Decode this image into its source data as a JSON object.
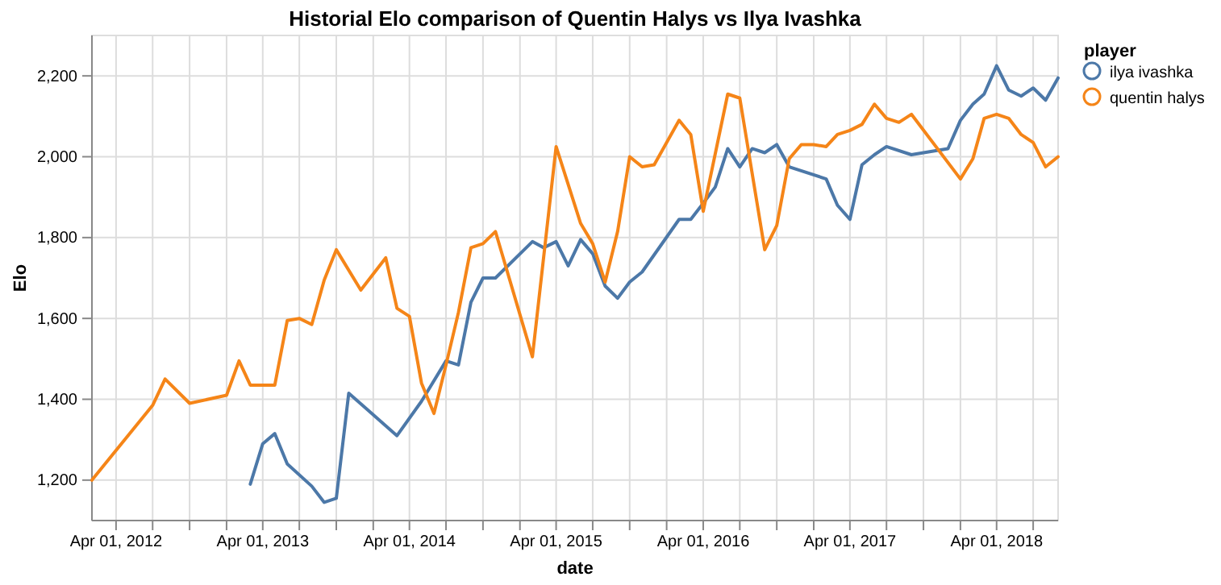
{
  "chart_data": {
    "type": "line",
    "title": "Historial Elo comparison of Quentin Halys vs Ilya Ivashka",
    "xlabel": "date",
    "ylabel": "Elo",
    "legend_title": "player",
    "legend": "top right",
    "grid": true,
    "marker": "none",
    "line_style": "solid",
    "xlim": [
      "2012-02-01",
      "2018-09-01"
    ],
    "ylim": [
      1100,
      2300
    ],
    "xticks": [
      {
        "value": "2012-04-01",
        "label": "Apr 01, 2012"
      },
      {
        "value": "2012-07-01",
        "label": null
      },
      {
        "value": "2012-10-01",
        "label": null
      },
      {
        "value": "2013-01-01",
        "label": null
      },
      {
        "value": "2013-04-01",
        "label": "Apr 01, 2013"
      },
      {
        "value": "2013-07-01",
        "label": null
      },
      {
        "value": "2013-10-01",
        "label": null
      },
      {
        "value": "2014-01-01",
        "label": null
      },
      {
        "value": "2014-04-01",
        "label": "Apr 01, 2014"
      },
      {
        "value": "2014-07-01",
        "label": null
      },
      {
        "value": "2014-10-01",
        "label": null
      },
      {
        "value": "2015-01-01",
        "label": null
      },
      {
        "value": "2015-04-01",
        "label": "Apr 01, 2015"
      },
      {
        "value": "2015-07-01",
        "label": null
      },
      {
        "value": "2015-10-01",
        "label": null
      },
      {
        "value": "2016-01-01",
        "label": null
      },
      {
        "value": "2016-04-01",
        "label": "Apr 01, 2016"
      },
      {
        "value": "2016-07-01",
        "label": null
      },
      {
        "value": "2016-10-01",
        "label": null
      },
      {
        "value": "2017-01-01",
        "label": null
      },
      {
        "value": "2017-04-01",
        "label": "Apr 01, 2017"
      },
      {
        "value": "2017-07-01",
        "label": null
      },
      {
        "value": "2017-10-01",
        "label": null
      },
      {
        "value": "2018-01-01",
        "label": null
      },
      {
        "value": "2018-04-01",
        "label": "Apr 01, 2018"
      },
      {
        "value": "2018-07-01",
        "label": null
      }
    ],
    "yticks": [
      {
        "value": 1200,
        "label": "1,200"
      },
      {
        "value": 1400,
        "label": "1,400"
      },
      {
        "value": 1600,
        "label": "1,600"
      },
      {
        "value": 1800,
        "label": "1,800"
      },
      {
        "value": 2000,
        "label": "2,000"
      },
      {
        "value": 2200,
        "label": "2,200"
      }
    ],
    "series": [
      {
        "name": "ilya ivashka",
        "color": "#4c78a8",
        "x": [
          "2013-03-01",
          "2013-04-01",
          "2013-05-01",
          "2013-06-01",
          "2013-08-01",
          "2013-09-01",
          "2013-10-01",
          "2013-11-01",
          "2014-03-01",
          "2014-05-01",
          "2014-07-01",
          "2014-08-01",
          "2014-09-01",
          "2014-10-01",
          "2014-11-01",
          "2015-02-01",
          "2015-03-01",
          "2015-04-01",
          "2015-05-01",
          "2015-06-01",
          "2015-07-01",
          "2015-08-01",
          "2015-09-01",
          "2015-10-01",
          "2015-11-01",
          "2016-02-01",
          "2016-03-01",
          "2016-04-01",
          "2016-05-01",
          "2016-06-01",
          "2016-07-01",
          "2016-08-01",
          "2016-09-01",
          "2016-10-01",
          "2016-11-01",
          "2017-02-01",
          "2017-03-01",
          "2017-04-01",
          "2017-05-01",
          "2017-06-01",
          "2017-07-01",
          "2017-09-01",
          "2017-12-01",
          "2018-01-01",
          "2018-02-01",
          "2018-03-01",
          "2018-04-01",
          "2018-05-01",
          "2018-06-01",
          "2018-07-01",
          "2018-08-01",
          "2018-09-01"
        ],
        "values": [
          1190,
          1290,
          1315,
          1240,
          1185,
          1145,
          1155,
          1415,
          1310,
          1395,
          1495,
          1485,
          1640,
          1700,
          1700,
          1790,
          1775,
          1790,
          1730,
          1795,
          1760,
          1680,
          1650,
          1690,
          1715,
          1845,
          1845,
          1885,
          1925,
          2020,
          1975,
          2020,
          2010,
          2030,
          1975,
          1945,
          1880,
          1845,
          1980,
          2005,
          2025,
          2005,
          2020,
          2090,
          2130,
          2155,
          2225,
          2165,
          2150,
          2170,
          2140,
          2195
        ]
      },
      {
        "name": "quentin halys",
        "color": "#f58518",
        "x": [
          "2012-02-01",
          "2012-07-01",
          "2012-08-01",
          "2012-10-01",
          "2013-01-01",
          "2013-02-01",
          "2013-03-01",
          "2013-05-01",
          "2013-06-01",
          "2013-07-01",
          "2013-08-01",
          "2013-09-01",
          "2013-10-01",
          "2013-12-01",
          "2014-02-01",
          "2014-03-01",
          "2014-04-01",
          "2014-05-01",
          "2014-06-01",
          "2014-07-01",
          "2014-08-01",
          "2014-09-01",
          "2014-10-01",
          "2014-11-01",
          "2015-02-01",
          "2015-04-01",
          "2015-06-01",
          "2015-07-01",
          "2015-08-01",
          "2015-09-01",
          "2015-10-01",
          "2015-11-01",
          "2015-12-01",
          "2016-02-01",
          "2016-03-01",
          "2016-04-01",
          "2016-06-01",
          "2016-07-01",
          "2016-09-01",
          "2016-10-01",
          "2016-11-01",
          "2016-12-01",
          "2017-01-01",
          "2017-02-01",
          "2017-03-01",
          "2017-04-01",
          "2017-05-01",
          "2017-06-01",
          "2017-07-01",
          "2017-08-01",
          "2017-09-01",
          "2018-01-01",
          "2018-02-01",
          "2018-03-01",
          "2018-04-01",
          "2018-05-01",
          "2018-06-01",
          "2018-07-01",
          "2018-08-01",
          "2018-09-01"
        ],
        "values": [
          1200,
          1385,
          1450,
          1390,
          1410,
          1495,
          1435,
          1435,
          1595,
          1600,
          1585,
          1695,
          1770,
          1670,
          1750,
          1625,
          1605,
          1440,
          1365,
          1485,
          1615,
          1775,
          1785,
          1815,
          1505,
          2025,
          1835,
          1785,
          1690,
          1815,
          2000,
          1975,
          1980,
          2090,
          2055,
          1865,
          2155,
          2145,
          1770,
          1830,
          1995,
          2030,
          2030,
          2025,
          2055,
          2065,
          2080,
          2130,
          2095,
          2085,
          2105,
          1945,
          1995,
          2095,
          2105,
          2095,
          2055,
          2035,
          1975,
          2000
        ]
      }
    ]
  }
}
